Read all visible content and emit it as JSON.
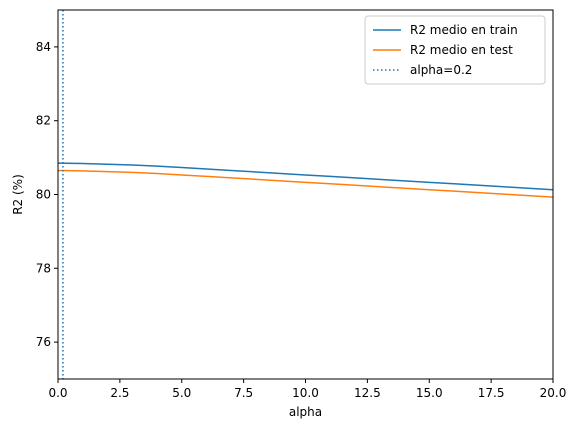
{
  "chart_data": {
    "type": "line",
    "title": "",
    "xlabel": "alpha",
    "ylabel": "R2 (%)",
    "xlim": [
      0,
      20
    ],
    "ylim": [
      75,
      85
    ],
    "xticks": [
      0.0,
      2.5,
      5.0,
      7.5,
      10.0,
      12.5,
      15.0,
      17.5,
      20.0
    ],
    "xtick_labels": [
      "0.0",
      "2.5",
      "5.0",
      "7.5",
      "10.0",
      "12.5",
      "15.0",
      "17.5",
      "20.0"
    ],
    "yticks": [
      76,
      78,
      80,
      82,
      84
    ],
    "ytick_labels": [
      "76",
      "78",
      "80",
      "82",
      "84"
    ],
    "grid": false,
    "legend_position": "top-right",
    "series": [
      {
        "name": "R2 medio en train",
        "color": "#1f77b4",
        "style": "solid",
        "x": [
          0,
          1,
          2,
          3,
          4,
          5,
          6,
          7,
          8,
          9,
          10,
          11,
          12,
          13,
          14,
          15,
          16,
          17,
          18,
          19,
          20
        ],
        "y": [
          80.85,
          80.84,
          80.82,
          80.8,
          80.77,
          80.73,
          80.69,
          80.65,
          80.61,
          80.57,
          80.53,
          80.49,
          80.45,
          80.41,
          80.37,
          80.33,
          80.29,
          80.25,
          80.21,
          80.17,
          80.13
        ]
      },
      {
        "name": "R2 medio en test",
        "color": "#ff7f0e",
        "style": "solid",
        "x": [
          0,
          1,
          2,
          3,
          4,
          5,
          6,
          7,
          8,
          9,
          10,
          11,
          12,
          13,
          14,
          15,
          16,
          17,
          18,
          19,
          20
        ],
        "y": [
          80.65,
          80.64,
          80.62,
          80.6,
          80.57,
          80.53,
          80.49,
          80.45,
          80.41,
          80.37,
          80.33,
          80.29,
          80.25,
          80.21,
          80.17,
          80.13,
          80.09,
          80.05,
          80.01,
          79.97,
          79.93
        ]
      }
    ],
    "vlines": [
      {
        "name": "alpha=0.2",
        "x": 0.2,
        "color": "#1f77b4",
        "style": "dotted"
      }
    ]
  }
}
